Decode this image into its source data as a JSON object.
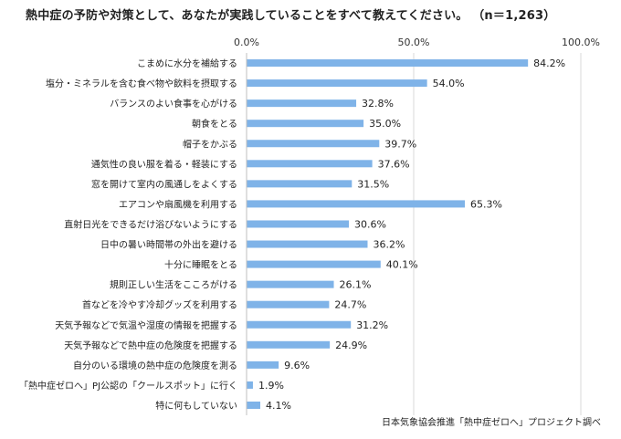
{
  "chart_data": {
    "type": "bar",
    "orientation": "horizontal",
    "title": "熱中症の予防や対策として、あなたが実践していることをすべて教えてください。 （n＝1,263）",
    "source": "日本気象協会推進「熱中症ゼロへ」プロジェクト調べ",
    "xlim": [
      0,
      100
    ],
    "x_ticks": [
      "0.0%",
      "50.0%",
      "100.0%"
    ],
    "x_tick_values": [
      0,
      50,
      100
    ],
    "grid": true,
    "bar_color": "#7fb3e8",
    "categories": [
      "こまめに水分を補給する",
      "塩分・ミネラルを含む食べ物や飲料を摂取する",
      "バランスのよい食事を心がける",
      "朝食をとる",
      "帽子をかぶる",
      "通気性の良い服を着る・軽装にする",
      "窓を開けて室内の風通しをよくする",
      "エアコンや扇風機を利用する",
      "直射日光をできるだけ浴びないようにする",
      "日中の暑い時間帯の外出を避ける",
      "十分に睡眠をとる",
      "規則正しい生活をこころがける",
      "首などを冷やす冷却グッズを利用する",
      "天気予報などで気温や湿度の情報を把握する",
      "天気予報などで熱中症の危険度を把握する",
      "自分のいる環境の熱中症の危険度を測る",
      "「熱中症ゼロへ」PJ公認の「クールスポット」に行く",
      "特に何もしていない"
    ],
    "values": [
      84.2,
      54.0,
      32.8,
      35.0,
      39.7,
      37.6,
      31.5,
      65.3,
      30.6,
      36.2,
      40.1,
      26.1,
      24.7,
      31.2,
      24.9,
      9.6,
      1.9,
      4.1
    ],
    "value_labels": [
      "84.2%",
      "54.0%",
      "32.8%",
      "35.0%",
      "39.7%",
      "37.6%",
      "31.5%",
      "65.3%",
      "30.6%",
      "36.2%",
      "40.1%",
      "26.1%",
      "24.7%",
      "31.2%",
      "24.9%",
      "9.6%",
      "1.9%",
      "4.1%"
    ]
  }
}
